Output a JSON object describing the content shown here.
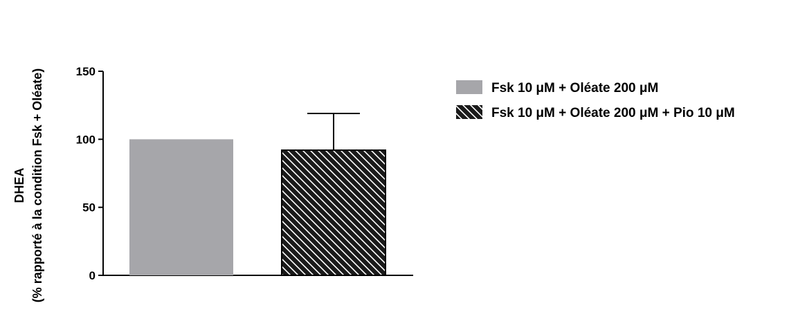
{
  "chart_data": {
    "type": "bar",
    "ylabel_line1": "DHEA",
    "ylabel_line2": "(% rapporté à la condition Fsk + Oléate)",
    "ylim": [
      0,
      150
    ],
    "yticks": [
      0,
      50,
      100,
      150
    ],
    "grid": false,
    "legend_position": "right",
    "series": [
      {
        "name": "Fsk 10 μM + Oléate 200 μM",
        "value": 100,
        "error": null,
        "fill": "solid",
        "color": "#a6a6aa"
      },
      {
        "name": "Fsk 10 μM + Oléate 200 μM + Pio 10 μM",
        "value": 92,
        "error": 27,
        "fill": "hatched",
        "color": "#1a1a1a"
      }
    ]
  }
}
